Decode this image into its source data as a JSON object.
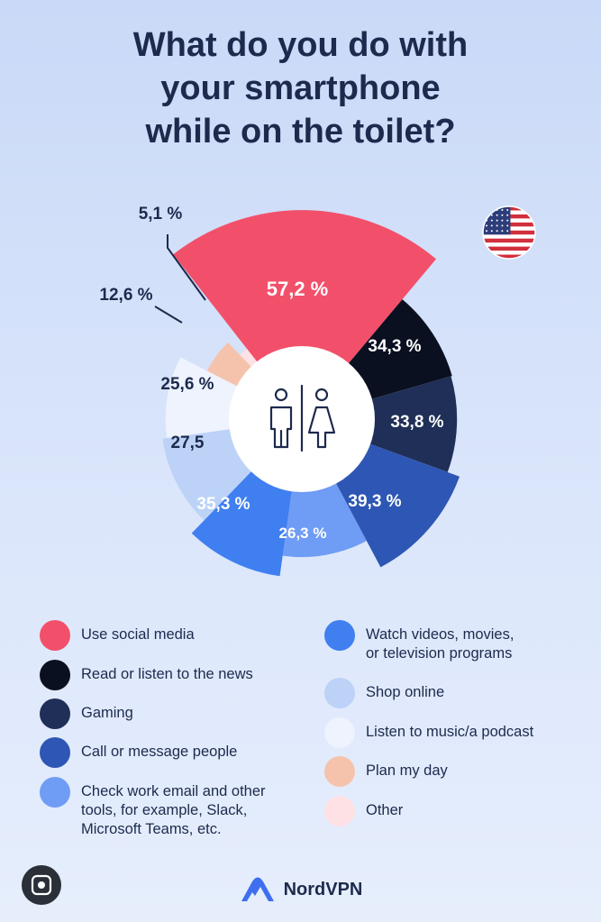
{
  "title": {
    "line1": "What do you do with",
    "line2": "your smartphone",
    "line3": "while on the toilet?"
  },
  "chart_data": {
    "type": "pie",
    "variant": "rose-donut",
    "title": "What do you do with your smartphone while on the toilet?",
    "unit": "%",
    "slices": [
      {
        "label": "Use social media",
        "value": 57.2,
        "display": "57,2 %",
        "color": "#f2506a"
      },
      {
        "label": "Read or listen to the news",
        "value": 34.3,
        "display": "34,3 %",
        "color": "#0b1020"
      },
      {
        "label": "Gaming",
        "value": 33.8,
        "display": "33,8 %",
        "color": "#1f2f57"
      },
      {
        "label": "Call or message people",
        "value": 39.3,
        "display": "39,3 %",
        "color": "#2e56b4"
      },
      {
        "label": "Check work email and other tools, for example, Slack, Microsoft Teams, etc.",
        "value": 26.3,
        "display": "26,3 %",
        "color": "#6f9cf5"
      },
      {
        "label": "Watch videos, movies, or television programs",
        "value": 35.3,
        "display": "35,3 %",
        "color": "#3f7ff0"
      },
      {
        "label": "Shop online",
        "value": 27.5,
        "display": "27,5",
        "color": "#bcd2f7"
      },
      {
        "label": "Listen to music/a podcast",
        "value": 25.6,
        "display": "25,6 %",
        "color": "#eef3fd"
      },
      {
        "label": "Plan my day",
        "value": 12.6,
        "display": "12,6 %",
        "color": "#f5c3ab"
      },
      {
        "label": "Other",
        "value": 5.1,
        "display": "5,1 %",
        "color": "#fde1e4"
      }
    ]
  },
  "legend": {
    "left": [
      {
        "label": "Use social media",
        "color": "#f2506a"
      },
      {
        "label": "Read or listen to the news",
        "color": "#0b1020"
      },
      {
        "label": "Gaming",
        "color": "#1f2f57"
      },
      {
        "label": "Call or message people",
        "color": "#2e56b4"
      },
      {
        "label": "Check work email and other\ntools, for example, Slack,\nMicrosoft Teams, etc.",
        "color": "#6f9cf5"
      }
    ],
    "right": [
      {
        "label": "Watch videos, movies,\nor television programs",
        "color": "#3f7ff0"
      },
      {
        "label": "Shop online",
        "color": "#bcd2f7"
      },
      {
        "label": "Listen to music/a podcast",
        "color": "#eef3fd"
      },
      {
        "label": "Plan my day",
        "color": "#f5c3ab"
      },
      {
        "label": "Other",
        "color": "#fde1e4"
      }
    ]
  },
  "brand": {
    "name": "NordVPN"
  },
  "icons": {
    "flag": "us-flag-icon",
    "toilet": "restroom-icon",
    "lens": "lens-icon"
  }
}
